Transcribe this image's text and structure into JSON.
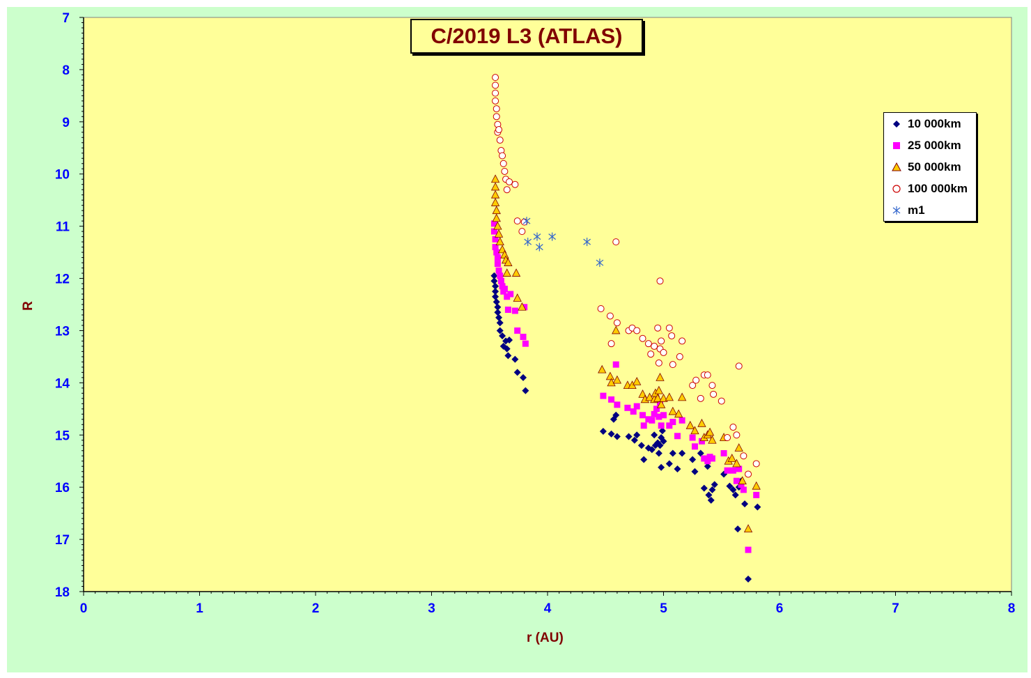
{
  "chart_data": {
    "type": "scatter",
    "title": "C/2019 L3 (ATLAS)",
    "xlabel": "r (AU)",
    "ylabel": "R",
    "xlim": [
      0,
      8
    ],
    "ylim": [
      7,
      18
    ],
    "y_inverted": true,
    "x_ticks": [
      "0",
      "1",
      "2",
      "3",
      "4",
      "5",
      "6",
      "7",
      "8"
    ],
    "y_ticks": [
      "7",
      "8",
      "9",
      "10",
      "11",
      "12",
      "13",
      "14",
      "15",
      "16",
      "17",
      "18"
    ],
    "grid": false,
    "legend_position": "top-right",
    "colors": {
      "plot_bg": "#ffff99",
      "chart_bg": "#ccffcc",
      "title_color": "#800000",
      "tick_color": "#0000ff"
    },
    "series": [
      {
        "name": "10 000km",
        "marker": "diamond",
        "color": "#000080",
        "points": [
          [
            3.54,
            11.95
          ],
          [
            3.54,
            12.05
          ],
          [
            3.55,
            12.15
          ],
          [
            3.55,
            12.25
          ],
          [
            3.55,
            12.35
          ],
          [
            3.56,
            12.45
          ],
          [
            3.57,
            12.55
          ],
          [
            3.57,
            12.65
          ],
          [
            3.58,
            12.75
          ],
          [
            3.59,
            12.85
          ],
          [
            3.59,
            13.0
          ],
          [
            3.61,
            13.1
          ],
          [
            3.62,
            13.3
          ],
          [
            3.64,
            13.2
          ],
          [
            3.65,
            13.35
          ],
          [
            3.66,
            13.48
          ],
          [
            3.67,
            13.18
          ],
          [
            3.72,
            13.55
          ],
          [
            3.74,
            13.8
          ],
          [
            3.79,
            13.9
          ],
          [
            3.81,
            14.15
          ],
          [
            4.48,
            14.93
          ],
          [
            4.55,
            14.98
          ],
          [
            4.57,
            14.7
          ],
          [
            4.59,
            14.62
          ],
          [
            4.6,
            15.03
          ],
          [
            4.7,
            15.03
          ],
          [
            4.75,
            15.1
          ],
          [
            4.77,
            15.0
          ],
          [
            4.81,
            15.2
          ],
          [
            4.83,
            15.47
          ],
          [
            4.87,
            15.25
          ],
          [
            4.9,
            15.28
          ],
          [
            4.92,
            15.0
          ],
          [
            4.93,
            15.2
          ],
          [
            4.95,
            15.15
          ],
          [
            4.96,
            15.35
          ],
          [
            4.97,
            15.2
          ],
          [
            4.98,
            15.05
          ],
          [
            4.99,
            14.92
          ],
          [
            5.0,
            15.12
          ],
          [
            4.98,
            15.62
          ],
          [
            5.05,
            15.55
          ],
          [
            5.08,
            15.35
          ],
          [
            5.12,
            15.65
          ],
          [
            5.16,
            15.35
          ],
          [
            5.25,
            15.47
          ],
          [
            5.27,
            15.7
          ],
          [
            5.32,
            15.35
          ],
          [
            5.35,
            16.02
          ],
          [
            5.38,
            15.6
          ],
          [
            5.39,
            16.15
          ],
          [
            5.41,
            16.25
          ],
          [
            5.42,
            16.05
          ],
          [
            5.44,
            15.95
          ],
          [
            5.52,
            15.75
          ],
          [
            5.57,
            15.98
          ],
          [
            5.6,
            16.05
          ],
          [
            5.62,
            16.15
          ],
          [
            5.64,
            16.8
          ],
          [
            5.65,
            16.0
          ],
          [
            5.67,
            15.88
          ],
          [
            5.7,
            16.32
          ],
          [
            5.73,
            17.76
          ],
          [
            5.81,
            16.38
          ]
        ]
      },
      {
        "name": "25 000km",
        "marker": "square",
        "color": "#ff00ff",
        "points": [
          [
            3.54,
            10.95
          ],
          [
            3.54,
            11.1
          ],
          [
            3.55,
            11.25
          ],
          [
            3.55,
            11.4
          ],
          [
            3.56,
            11.5
          ],
          [
            3.57,
            11.6
          ],
          [
            3.57,
            11.72
          ],
          [
            3.58,
            11.85
          ],
          [
            3.59,
            11.95
          ],
          [
            3.6,
            12.05
          ],
          [
            3.61,
            12.15
          ],
          [
            3.62,
            12.25
          ],
          [
            3.63,
            12.2
          ],
          [
            3.65,
            12.35
          ],
          [
            3.66,
            12.6
          ],
          [
            3.68,
            12.3
          ],
          [
            3.72,
            12.62
          ],
          [
            3.74,
            13.0
          ],
          [
            3.79,
            13.12
          ],
          [
            3.81,
            13.25
          ],
          [
            3.8,
            12.55
          ],
          [
            4.48,
            14.25
          ],
          [
            4.55,
            14.32
          ],
          [
            4.59,
            13.65
          ],
          [
            4.6,
            14.42
          ],
          [
            4.69,
            14.48
          ],
          [
            4.74,
            14.55
          ],
          [
            4.77,
            14.45
          ],
          [
            4.82,
            14.62
          ],
          [
            4.83,
            14.82
          ],
          [
            4.87,
            14.7
          ],
          [
            4.9,
            14.72
          ],
          [
            4.92,
            14.6
          ],
          [
            4.94,
            14.5
          ],
          [
            4.96,
            14.65
          ],
          [
            4.97,
            14.42
          ],
          [
            4.98,
            14.82
          ],
          [
            5.0,
            14.62
          ],
          [
            5.05,
            14.82
          ],
          [
            5.08,
            14.75
          ],
          [
            5.12,
            15.02
          ],
          [
            5.16,
            14.72
          ],
          [
            5.25,
            15.05
          ],
          [
            5.27,
            15.22
          ],
          [
            5.33,
            15.12
          ],
          [
            5.35,
            15.45
          ],
          [
            5.38,
            15.5
          ],
          [
            5.4,
            15.42
          ],
          [
            5.42,
            15.45
          ],
          [
            5.52,
            15.35
          ],
          [
            5.55,
            15.68
          ],
          [
            5.6,
            15.68
          ],
          [
            5.63,
            15.88
          ],
          [
            5.65,
            15.65
          ],
          [
            5.67,
            15.95
          ],
          [
            5.69,
            16.05
          ],
          [
            5.73,
            17.2
          ],
          [
            5.8,
            16.15
          ]
        ]
      },
      {
        "name": "50 000km",
        "marker": "triangle",
        "color": "#ffcc00",
        "points": [
          [
            3.55,
            10.1
          ],
          [
            3.55,
            10.25
          ],
          [
            3.55,
            10.4
          ],
          [
            3.55,
            10.55
          ],
          [
            3.56,
            10.7
          ],
          [
            3.56,
            10.85
          ],
          [
            3.57,
            11.0
          ],
          [
            3.58,
            11.15
          ],
          [
            3.59,
            11.3
          ],
          [
            3.61,
            11.45
          ],
          [
            3.63,
            11.55
          ],
          [
            3.64,
            11.65
          ],
          [
            3.65,
            11.9
          ],
          [
            3.66,
            11.7
          ],
          [
            3.73,
            11.9
          ],
          [
            3.74,
            12.38
          ],
          [
            3.78,
            12.55
          ],
          [
            4.47,
            13.75
          ],
          [
            4.54,
            13.88
          ],
          [
            4.55,
            14.0
          ],
          [
            4.59,
            13.0
          ],
          [
            4.6,
            13.95
          ],
          [
            4.69,
            14.05
          ],
          [
            4.73,
            14.05
          ],
          [
            4.77,
            13.98
          ],
          [
            4.82,
            14.22
          ],
          [
            4.84,
            14.32
          ],
          [
            4.88,
            14.28
          ],
          [
            4.92,
            14.32
          ],
          [
            4.93,
            14.2
          ],
          [
            4.95,
            14.3
          ],
          [
            4.96,
            14.15
          ],
          [
            4.97,
            13.9
          ],
          [
            4.98,
            14.42
          ],
          [
            5.0,
            14.3
          ],
          [
            5.05,
            14.28
          ],
          [
            5.08,
            14.55
          ],
          [
            5.13,
            14.6
          ],
          [
            5.16,
            14.28
          ],
          [
            5.23,
            14.82
          ],
          [
            5.27,
            14.92
          ],
          [
            5.33,
            14.78
          ],
          [
            5.35,
            15.05
          ],
          [
            5.38,
            15.0
          ],
          [
            5.4,
            14.95
          ],
          [
            5.42,
            15.1
          ],
          [
            5.52,
            15.05
          ],
          [
            5.56,
            15.5
          ],
          [
            5.59,
            15.45
          ],
          [
            5.63,
            15.55
          ],
          [
            5.65,
            15.25
          ],
          [
            5.68,
            15.88
          ],
          [
            5.73,
            16.8
          ],
          [
            5.8,
            15.98
          ]
        ]
      },
      {
        "name": "100 000km",
        "marker": "circle",
        "color": "#cc0000",
        "points": [
          [
            3.55,
            8.15
          ],
          [
            3.55,
            8.3
          ],
          [
            3.55,
            8.45
          ],
          [
            3.55,
            8.6
          ],
          [
            3.56,
            8.75
          ],
          [
            3.56,
            8.9
          ],
          [
            3.57,
            9.05
          ],
          [
            3.57,
            9.2
          ],
          [
            3.58,
            9.15
          ],
          [
            3.59,
            9.35
          ],
          [
            3.6,
            9.55
          ],
          [
            3.61,
            9.65
          ],
          [
            3.62,
            9.8
          ],
          [
            3.63,
            9.95
          ],
          [
            3.64,
            10.1
          ],
          [
            3.65,
            10.3
          ],
          [
            3.67,
            10.15
          ],
          [
            3.72,
            10.2
          ],
          [
            3.74,
            10.9
          ],
          [
            3.78,
            11.1
          ],
          [
            3.8,
            10.92
          ],
          [
            4.59,
            11.3
          ],
          [
            4.97,
            12.05
          ],
          [
            4.46,
            12.58
          ],
          [
            4.54,
            12.72
          ],
          [
            4.55,
            13.25
          ],
          [
            4.6,
            12.85
          ],
          [
            4.7,
            13.0
          ],
          [
            4.73,
            12.95
          ],
          [
            4.77,
            13.0
          ],
          [
            4.82,
            13.15
          ],
          [
            4.87,
            13.25
          ],
          [
            4.89,
            13.45
          ],
          [
            4.92,
            13.3
          ],
          [
            4.95,
            12.95
          ],
          [
            4.96,
            13.62
          ],
          [
            4.97,
            13.35
          ],
          [
            4.98,
            13.2
          ],
          [
            5.0,
            13.42
          ],
          [
            5.05,
            12.95
          ],
          [
            5.07,
            13.1
          ],
          [
            5.08,
            13.65
          ],
          [
            5.14,
            13.5
          ],
          [
            5.16,
            13.2
          ],
          [
            5.25,
            14.05
          ],
          [
            5.28,
            13.95
          ],
          [
            5.32,
            14.3
          ],
          [
            5.35,
            13.85
          ],
          [
            5.38,
            13.85
          ],
          [
            5.42,
            14.05
          ],
          [
            5.43,
            14.22
          ],
          [
            5.5,
            14.35
          ],
          [
            5.55,
            15.05
          ],
          [
            5.6,
            14.85
          ],
          [
            5.63,
            15.0
          ],
          [
            5.65,
            13.68
          ],
          [
            5.69,
            15.4
          ],
          [
            5.73,
            15.75
          ],
          [
            5.8,
            15.55
          ]
        ]
      },
      {
        "name": "m1",
        "marker": "star",
        "color": "#3366cc",
        "points": [
          [
            3.82,
            10.9
          ],
          [
            3.83,
            11.3
          ],
          [
            3.91,
            11.2
          ],
          [
            3.93,
            11.4
          ],
          [
            4.04,
            11.2
          ],
          [
            4.34,
            11.3
          ],
          [
            4.45,
            11.7
          ]
        ]
      }
    ]
  }
}
